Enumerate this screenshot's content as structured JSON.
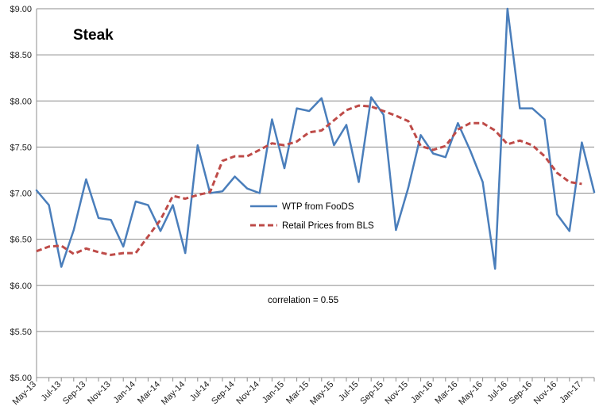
{
  "chart_data": {
    "type": "line",
    "title": "Steak",
    "xlabel": "",
    "ylabel": "",
    "ylim": [
      5.0,
      9.0
    ],
    "y_ticks": [
      5.0,
      5.5,
      6.0,
      6.5,
      7.0,
      7.5,
      8.0,
      8.5,
      9.0
    ],
    "y_tick_labels": [
      "$5.00",
      "$5.50",
      "$6.00",
      "$6.50",
      "$7.00",
      "$7.50",
      "$8.00",
      "$8.50",
      "$9.00"
    ],
    "grid": true,
    "categories": [
      "May-13",
      "Jun-13",
      "Jul-13",
      "Aug-13",
      "Sep-13",
      "Oct-13",
      "Nov-13",
      "Dec-13",
      "Jan-14",
      "Feb-14",
      "Mar-14",
      "Apr-14",
      "May-14",
      "Jun-14",
      "Jul-14",
      "Aug-14",
      "Sep-14",
      "Oct-14",
      "Nov-14",
      "Dec-14",
      "Jan-15",
      "Feb-15",
      "Mar-15",
      "Apr-15",
      "May-15",
      "Jun-15",
      "Jul-15",
      "Aug-15",
      "Sep-15",
      "Oct-15",
      "Nov-15",
      "Dec-15",
      "Jan-16",
      "Feb-16",
      "Mar-16",
      "Apr-16",
      "May-16",
      "Jun-16",
      "Jul-16",
      "Aug-16",
      "Sep-16",
      "Oct-16",
      "Nov-16",
      "Dec-16",
      "Jan-17",
      "Feb-17"
    ],
    "x_tick_labels": [
      "May-13",
      "Jul-13",
      "Sep-13",
      "Nov-13",
      "Jan-14",
      "Mar-14",
      "May-14",
      "Jul-14",
      "Sep-14",
      "Nov-14",
      "Jan-15",
      "Mar-15",
      "May-15",
      "Jul-15",
      "Sep-15",
      "Nov-15",
      "Jan-16",
      "Mar-16",
      "May-16",
      "Jul-16",
      "Sep-16",
      "Nov-16",
      "Jan-17"
    ],
    "series": [
      {
        "name": "WTP from FooDS",
        "color": "#4a7ebb",
        "style": "solid",
        "values": [
          7.03,
          6.87,
          6.2,
          6.6,
          7.15,
          6.73,
          6.71,
          6.42,
          6.91,
          6.87,
          6.59,
          6.87,
          6.35,
          7.52,
          7.0,
          7.02,
          7.18,
          7.05,
          7.0,
          7.8,
          7.27,
          7.92,
          7.89,
          8.03,
          7.52,
          7.74,
          7.12,
          8.04,
          7.85,
          6.6,
          7.06,
          7.63,
          7.43,
          7.39,
          7.76,
          7.46,
          7.12,
          6.18,
          9.0,
          7.92,
          7.92,
          7.8,
          6.77,
          6.59,
          7.55,
          7.01
        ]
      },
      {
        "name": "Retail Prices from BLS",
        "color": "#be4b48",
        "style": "dashed",
        "values": [
          6.37,
          6.42,
          6.43,
          6.34,
          6.4,
          6.36,
          6.33,
          6.35,
          6.35,
          6.53,
          6.71,
          6.97,
          6.94,
          6.98,
          7.01,
          7.35,
          7.4,
          7.4,
          7.47,
          7.54,
          7.52,
          7.56,
          7.66,
          7.68,
          7.79,
          7.9,
          7.95,
          7.94,
          7.89,
          7.84,
          7.78,
          7.51,
          7.47,
          7.51,
          7.69,
          7.76,
          7.76,
          7.68,
          7.53,
          7.57,
          7.52,
          7.4,
          7.22,
          7.12,
          7.1,
          null
        ]
      }
    ],
    "legend_position": "center",
    "annotation": "correlation = 0.55"
  }
}
